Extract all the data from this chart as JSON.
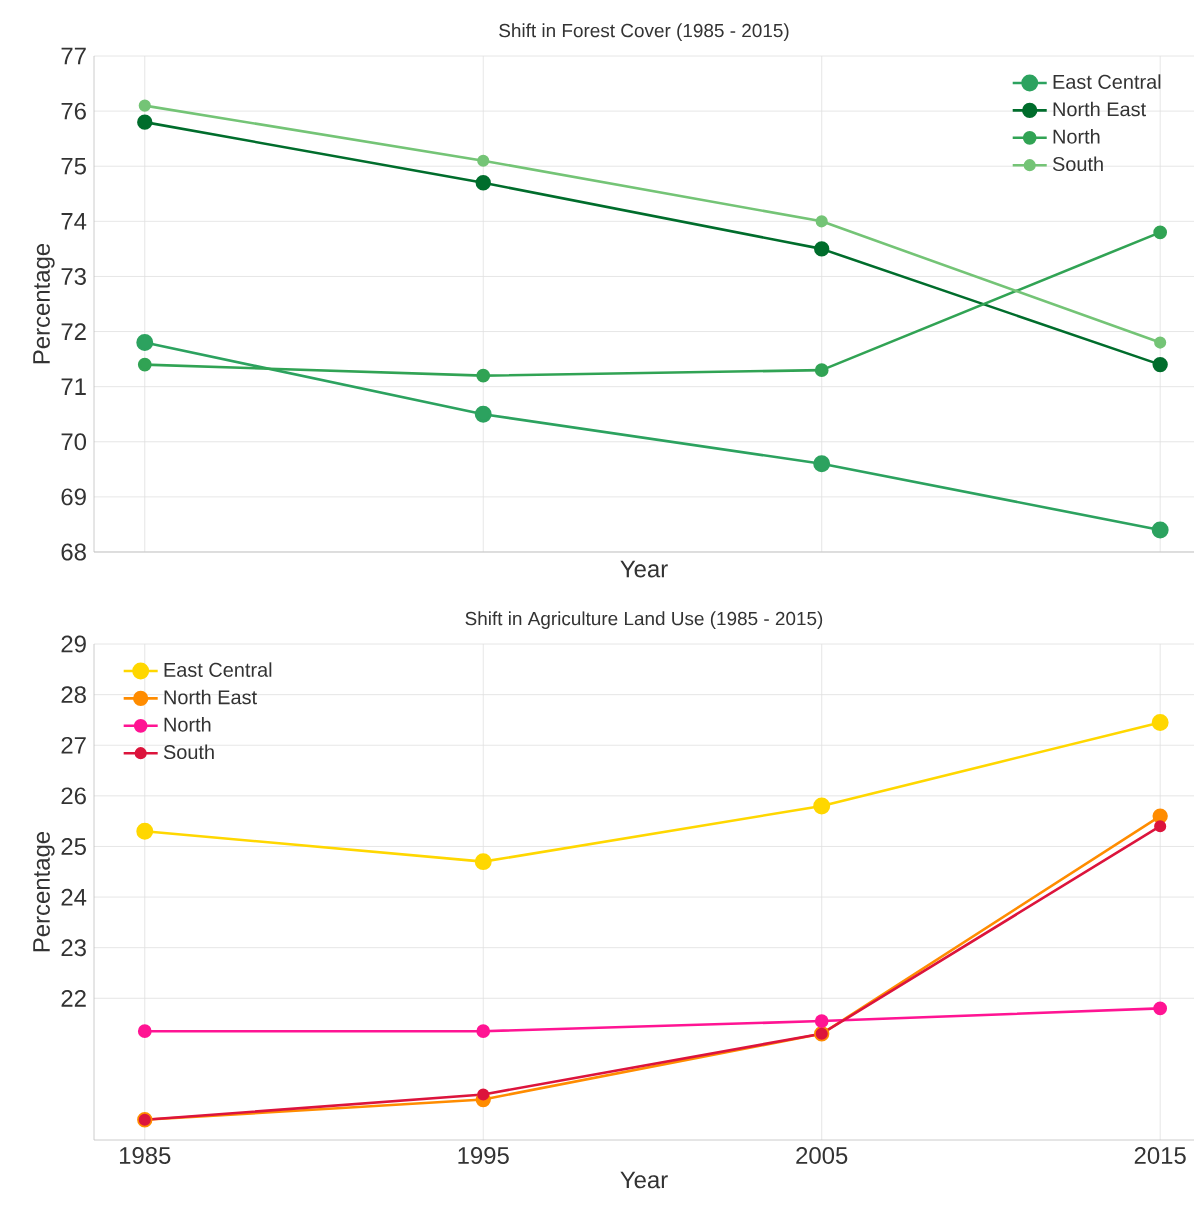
{
  "chart_data": [
    {
      "type": "line",
      "title": "Shift in Forest Cover (1985 - 2015)",
      "xlabel": "Year",
      "ylabel": "Percentage",
      "x": [
        1985,
        1995,
        2005,
        2015
      ],
      "xlim": [
        1983.5,
        2016
      ],
      "xticks": [
        1985,
        1995,
        2005,
        2015
      ],
      "ylim": [
        68,
        77
      ],
      "yticks": [
        68,
        69,
        70,
        71,
        72,
        73,
        74,
        75,
        76,
        77
      ],
      "tick_labels": "y",
      "grid": true,
      "legend": "top right",
      "marker": "circle",
      "line_style": "solid",
      "series": [
        {
          "name": "East Central",
          "color": "#2ca25f",
          "values": [
            71.8,
            70.5,
            69.6,
            68.4
          ]
        },
        {
          "name": "North East",
          "color": "#006d2c",
          "values": [
            75.8,
            74.7,
            73.5,
            71.4
          ]
        },
        {
          "name": "North",
          "color": "#31a354",
          "values": [
            71.4,
            71.2,
            71.3,
            73.8
          ]
        },
        {
          "name": "South",
          "color": "#74c476",
          "values": [
            76.1,
            75.1,
            74.0,
            71.8
          ]
        }
      ]
    },
    {
      "type": "line",
      "title": "Shift in Agriculture Land Use (1985 - 2015)",
      "xlabel": "Year",
      "ylabel": "Percentage",
      "x": [
        1985,
        1995,
        2005,
        2015
      ],
      "xlim": [
        1983.5,
        2016
      ],
      "xticks": [
        1985,
        1995,
        2005,
        2015
      ],
      "ylim": [
        19.2,
        29
      ],
      "yticks": [
        22,
        23,
        24,
        25,
        26,
        27,
        28,
        29
      ],
      "grid": true,
      "legend": "top left",
      "marker": "circle",
      "line_style": "solid",
      "series": [
        {
          "name": "East Central",
          "color": "#ffd700",
          "values": [
            25.3,
            24.7,
            25.8,
            27.45
          ]
        },
        {
          "name": "North East",
          "color": "#ff8c00",
          "values": [
            19.6,
            20.0,
            21.3,
            25.6
          ]
        },
        {
          "name": "North",
          "color": "#ff1493",
          "values": [
            21.35,
            21.35,
            21.55,
            21.8
          ]
        },
        {
          "name": "South",
          "color": "#dc143c",
          "values": [
            19.6,
            20.1,
            21.3,
            25.4
          ]
        }
      ]
    }
  ]
}
